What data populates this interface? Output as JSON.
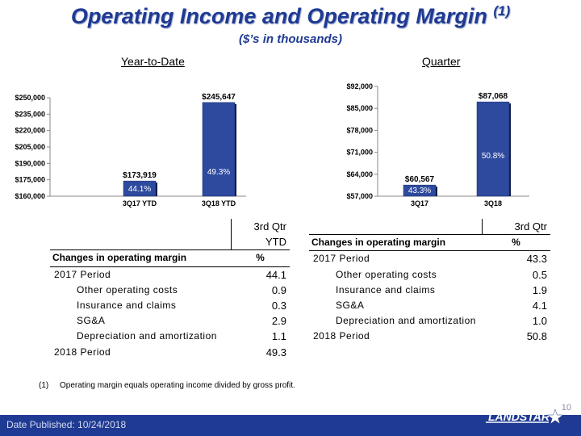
{
  "header": {
    "title": "Operating Income and Operating Margin",
    "title_sup": "(1)",
    "subtitle": "($’s in thousands)"
  },
  "labels": {
    "ytd": "Year-to-Date",
    "quarter": "Quarter"
  },
  "colors": {
    "title": "#1f3a93",
    "bar": "#2e4a9e",
    "footer": "#1f3a93"
  },
  "chart_data": [
    {
      "type": "bar",
      "title": "Year-to-Date",
      "categories": [
        "3Q17 YTD",
        "3Q18 YTD"
      ],
      "values": [
        173919,
        245647
      ],
      "value_labels": [
        "$173,919",
        "$245,647"
      ],
      "margins": [
        "44.1%",
        "49.3%"
      ],
      "ylim": [
        160000,
        250000
      ],
      "yticks": [
        160000,
        175000,
        190000,
        205000,
        220000,
        235000,
        250000
      ],
      "ytick_labels": [
        "$160,000",
        "$175,000",
        "$190,000",
        "$205,000",
        "$220,000",
        "$235,000",
        "$250,000"
      ],
      "grid": false
    },
    {
      "type": "bar",
      "title": "Quarter",
      "categories": [
        "3Q17",
        "3Q18"
      ],
      "values": [
        60567,
        87068
      ],
      "value_labels": [
        "$60,567",
        "$87,068"
      ],
      "margins": [
        "43.3%",
        "50.8%"
      ],
      "ylim": [
        57000,
        92000
      ],
      "yticks": [
        57000,
        64000,
        71000,
        78000,
        85000,
        92000
      ],
      "ytick_labels": [
        "$57,000",
        "$64,000",
        "$71,000",
        "$78,000",
        "$85,000",
        "$92,000"
      ],
      "grid": false
    }
  ],
  "tables": [
    {
      "header": "3rd Qtr YTD",
      "col_label": "Changes in operating margin",
      "unit": "%",
      "rows": [
        {
          "label": "2017 Period",
          "value": "44.1",
          "indent": 1
        },
        {
          "label": "Other operating costs",
          "value": "0.9",
          "indent": 2
        },
        {
          "label": "Insurance and claims",
          "value": "0.3",
          "indent": 2
        },
        {
          "label": "SG&A",
          "value": "2.9",
          "indent": 2
        },
        {
          "label": "Depreciation and amortization",
          "value": "1.1",
          "indent": 2
        },
        {
          "label": "2018 Period",
          "value": "49.3",
          "indent": 1
        }
      ]
    },
    {
      "header": "3rd Qtr",
      "col_label": "Changes in operating margin",
      "unit": "%",
      "rows": [
        {
          "label": "2017 Period",
          "value": "43.3",
          "indent": 1
        },
        {
          "label": "Other operating costs",
          "value": "0.5",
          "indent": 2
        },
        {
          "label": "Insurance and claims",
          "value": "1.9",
          "indent": 2
        },
        {
          "label": "SG&A",
          "value": "4.1",
          "indent": 2
        },
        {
          "label": "Depreciation and amortization",
          "value": "1.0",
          "indent": 2
        },
        {
          "label": "2018 Period",
          "value": "50.8",
          "indent": 1
        }
      ]
    }
  ],
  "footnote": {
    "num": "(1)",
    "text": "Operating margin equals operating income divided by gross profit."
  },
  "footer": {
    "page": "10",
    "date": "Date Published:  10/24/2018",
    "logo": "LANDSTAR",
    "logo_icon": "star-icon"
  }
}
